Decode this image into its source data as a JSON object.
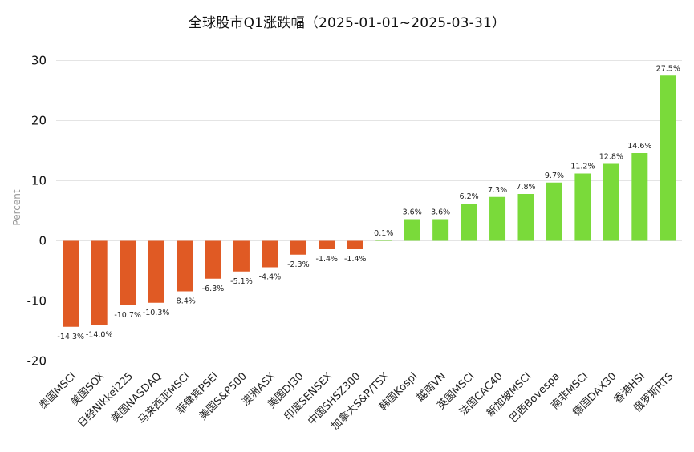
{
  "chart_data": {
    "type": "bar",
    "title": "全球股市Q1涨跌幅（2025-01-01~2025-03-31）",
    "ylabel": "Percent",
    "xlabel": "",
    "ylim": [
      -20,
      30
    ],
    "yticks": [
      30,
      20,
      10,
      0,
      -10,
      -20
    ],
    "grid": true,
    "colors": {
      "negative": "#e05a24",
      "positive": "#7ada3a"
    },
    "categories": [
      "泰国MSCI",
      "美国SOX",
      "日经Nikkei225",
      "美国NASDAQ",
      "马来西亚MSCI",
      "菲律宾PSEi",
      "美国S&P500",
      "澳洲ASX",
      "美国DJ30",
      "印度SENSEX",
      "中国SHSZ300",
      "加拿大S&P/TSX",
      "韩国Kospi",
      "越南VN",
      "英国MSCI",
      "法国CAC40",
      "新加坡MSCI",
      "巴西Bovespa",
      "南非MSCI",
      "德国DAX30",
      "香港HSI",
      "俄罗斯RTS"
    ],
    "values": [
      -14.3,
      -14.0,
      -10.7,
      -10.3,
      -8.4,
      -6.3,
      -5.1,
      -4.4,
      -2.3,
      -1.4,
      -1.4,
      0.1,
      3.6,
      3.6,
      6.2,
      7.3,
      7.8,
      9.7,
      11.2,
      12.8,
      14.6,
      27.5
    ],
    "data_labels": [
      "-14.3%",
      "-14.0%",
      "-10.7%",
      "-10.3%",
      "-8.4%",
      "-6.3%",
      "-5.1%",
      "-4.4%",
      "-2.3%",
      "-1.4%",
      "-1.4%",
      "0.1%",
      "3.6%",
      "3.6%",
      "6.2%",
      "7.3%",
      "7.8%",
      "9.7%",
      "11.2%",
      "12.8%",
      "14.6%",
      "27.5%"
    ]
  }
}
